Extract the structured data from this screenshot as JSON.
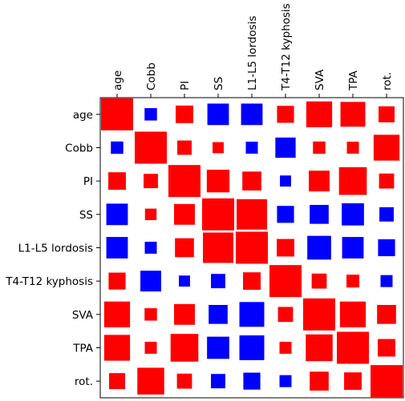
{
  "chart_data": {
    "type": "heatmap",
    "style": "correlation-squares",
    "title": "",
    "xlabel": "",
    "ylabel": "",
    "labels": [
      "age",
      "Cobb",
      "PI",
      "SS",
      "L1-L5 lordosis",
      "T4-T12 kyphosis",
      "SVA",
      "TPA",
      "rot."
    ],
    "x_tick_position": "top",
    "colors": {
      "positive": "#ff0000",
      "negative": "#0000ff"
    },
    "grid": false,
    "legend": "none",
    "values": [
      [
        1.0,
        -0.15,
        0.3,
        -0.45,
        -0.45,
        0.28,
        0.65,
        0.6,
        0.25
      ],
      [
        -0.15,
        1.0,
        0.2,
        0.12,
        -0.14,
        -0.4,
        0.15,
        0.14,
        0.65
      ],
      [
        0.3,
        0.2,
        1.0,
        0.5,
        0.35,
        -0.12,
        0.42,
        0.75,
        0.22
      ],
      [
        -0.45,
        0.13,
        0.42,
        1.0,
        0.9,
        -0.28,
        -0.35,
        -0.48,
        -0.2
      ],
      [
        -0.45,
        -0.14,
        0.35,
        0.9,
        1.0,
        0.3,
        -0.55,
        -0.45,
        -0.28
      ],
      [
        0.28,
        -0.42,
        -0.12,
        -0.2,
        0.3,
        1.0,
        0.22,
        0.16,
        -0.14
      ],
      [
        0.65,
        0.15,
        0.42,
        -0.35,
        -0.6,
        0.22,
        1.0,
        0.65,
        0.35
      ],
      [
        0.65,
        0.14,
        0.75,
        -0.48,
        -0.6,
        0.14,
        0.7,
        1.0,
        0.3
      ],
      [
        0.25,
        0.7,
        0.22,
        -0.2,
        -0.28,
        -0.14,
        0.35,
        0.3,
        1.0
      ]
    ]
  }
}
